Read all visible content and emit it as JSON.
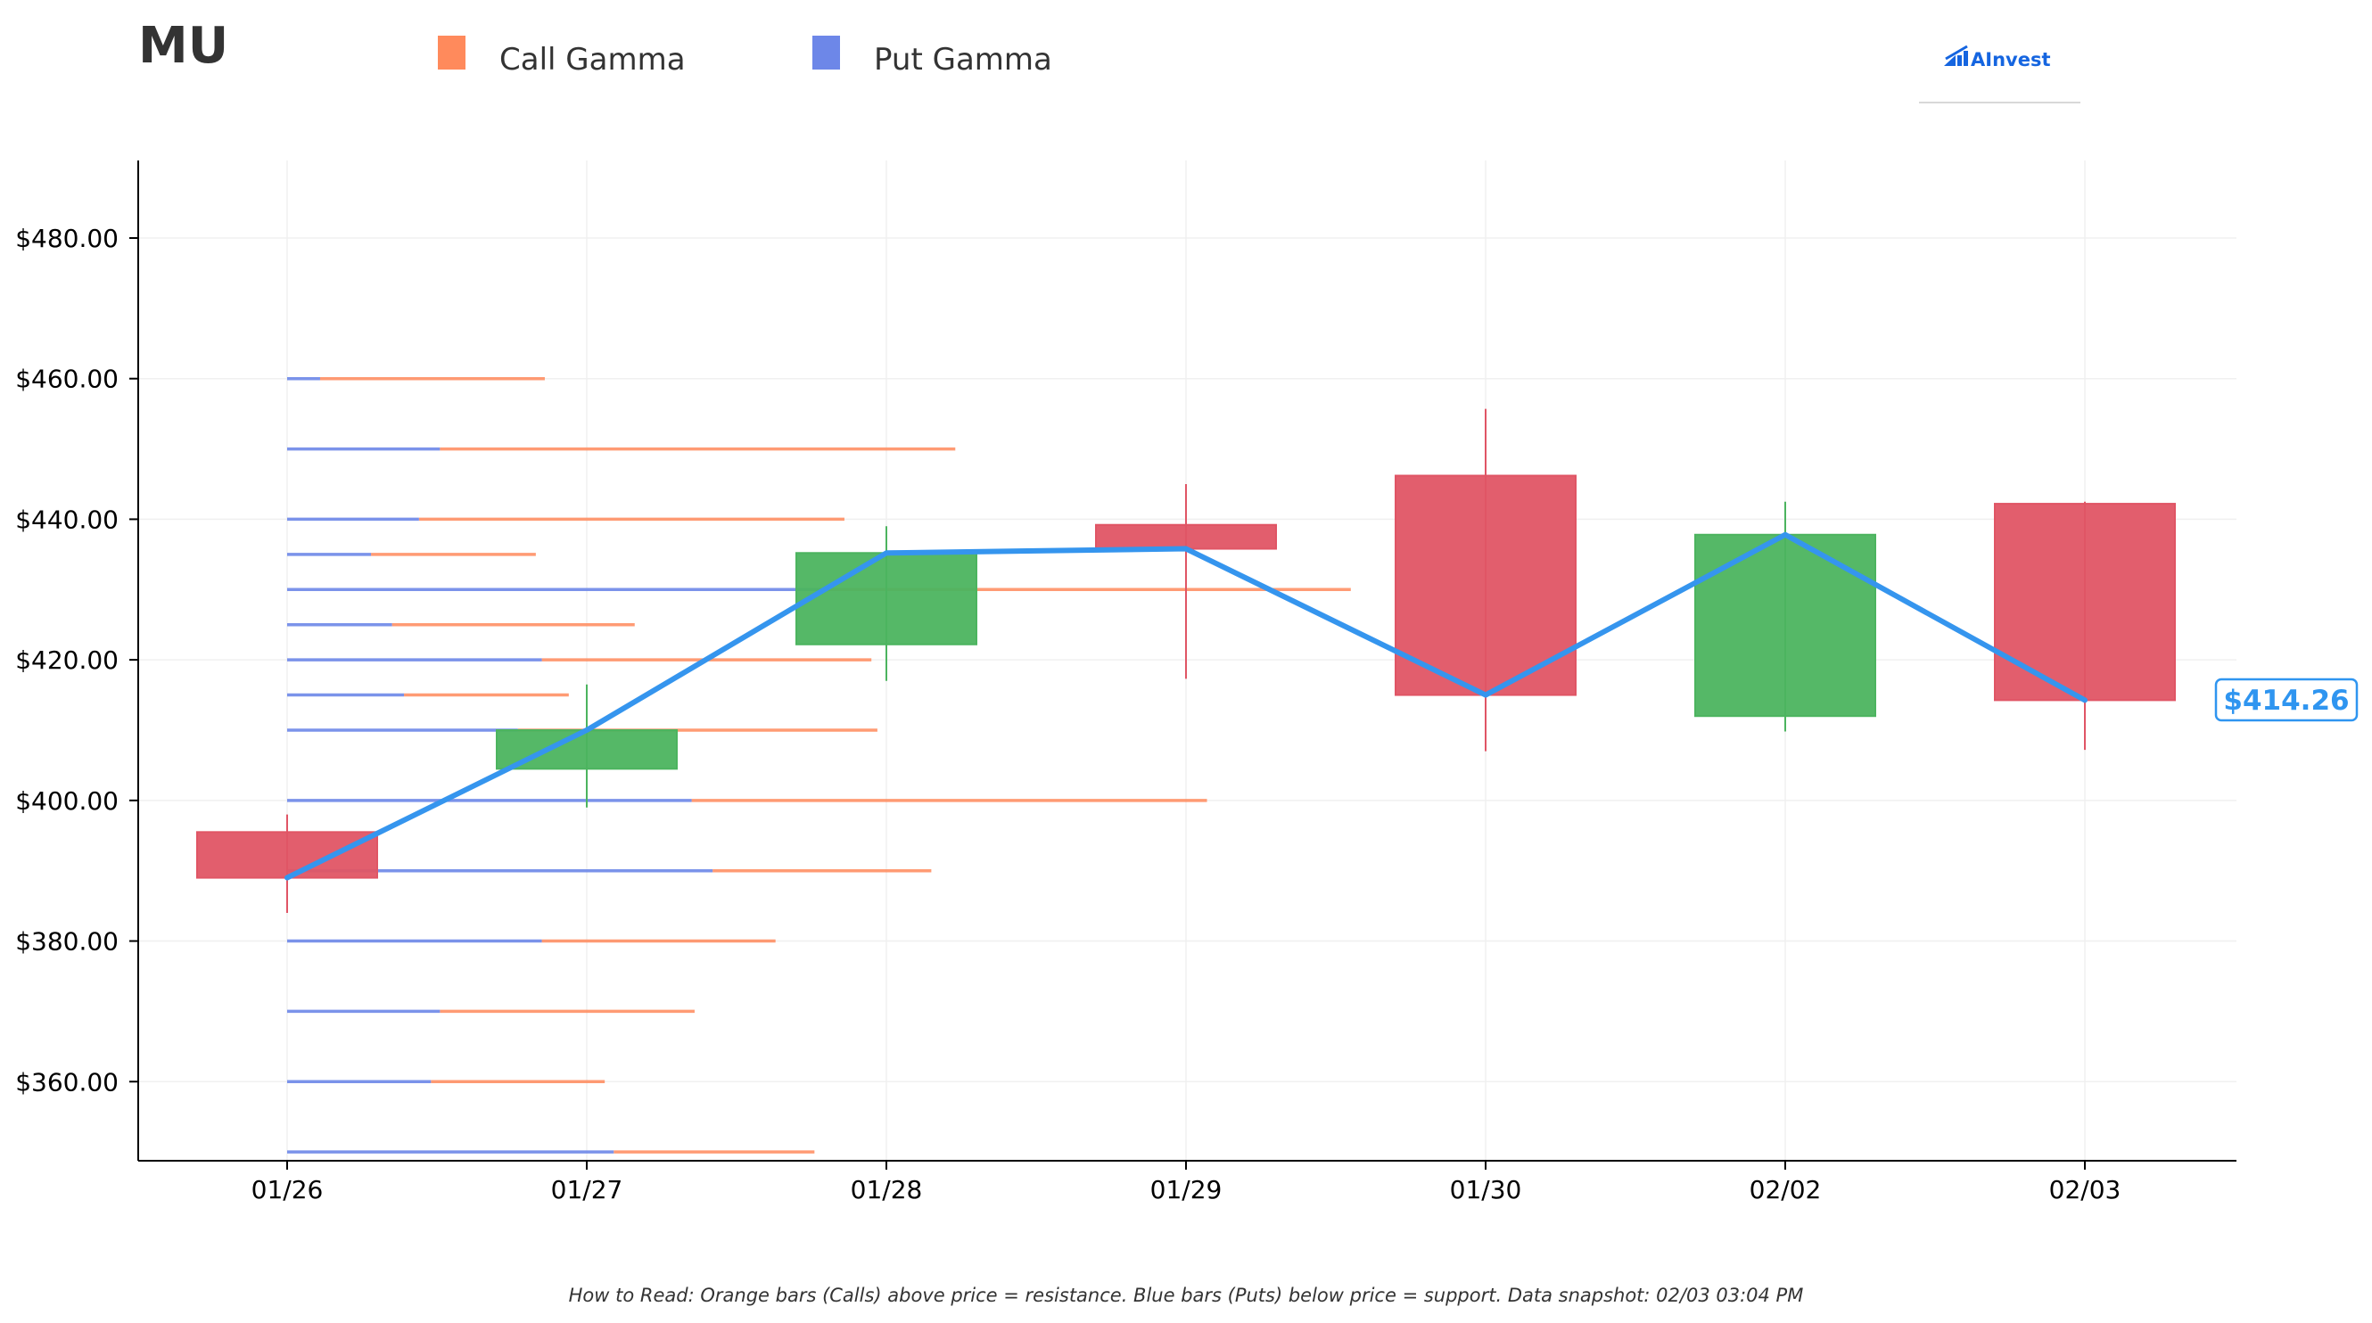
{
  "ticker": "MU",
  "brand": {
    "name": "AInvest",
    "icon": "bar-chart-logo-icon",
    "color": "#1565e0"
  },
  "legend": [
    {
      "label": "Call Gamma",
      "color": "#ff8a5c"
    },
    {
      "label": "Put Gamma",
      "color": "#6d87e8"
    }
  ],
  "footnote": "How to Read: Orange bars (Calls) above price = resistance. Blue bars (Puts) below price = support. Data snapshot: 02/03 03:04 PM",
  "last_price_label": "$414.26",
  "colors": {
    "up": "#4cb45f",
    "down": "#e05565",
    "price_line": "#3595ee",
    "call": "#ff8a5c",
    "put": "#6d87e8",
    "grid": "#f0f0f0"
  },
  "chart_data": {
    "type": "candlestick",
    "title": "MU",
    "xlabel": "",
    "ylabel": "",
    "grid": true,
    "legend_placement": "top",
    "ylim": [
      348,
      490
    ],
    "y_ticks": [
      360,
      380,
      400,
      420,
      440,
      460,
      480
    ],
    "y_tick_labels": [
      "$360.00",
      "$380.00",
      "$400.00",
      "$420.00",
      "$440.00",
      "$460.00",
      "$480.00"
    ],
    "categories": [
      "01/26",
      "01/27",
      "01/28",
      "01/29",
      "01/30",
      "02/02",
      "02/03"
    ],
    "candles": [
      {
        "date": "01/26",
        "open": 395.5,
        "high": 398.0,
        "low": 384.0,
        "close": 389.0
      },
      {
        "date": "01/27",
        "open": 404.5,
        "high": 416.5,
        "low": 399.0,
        "close": 410.0
      },
      {
        "date": "01/28",
        "open": 422.2,
        "high": 439.0,
        "low": 417.0,
        "close": 435.2
      },
      {
        "date": "01/29",
        "open": 439.2,
        "high": 445.0,
        "low": 417.3,
        "close": 435.8
      },
      {
        "date": "01/30",
        "open": 446.2,
        "high": 455.7,
        "low": 407.0,
        "close": 415.0
      },
      {
        "date": "02/02",
        "open": 412.0,
        "high": 442.5,
        "low": 409.8,
        "close": 437.8
      },
      {
        "date": "02/03",
        "open": 442.2,
        "high": 442.5,
        "low": 407.2,
        "close": 414.26
      }
    ],
    "price_line": {
      "name": "Close",
      "values": [
        389.0,
        410.0,
        435.2,
        435.8,
        415.0,
        437.8,
        414.26
      ]
    },
    "gamma_levels": [
      {
        "strike": 460,
        "put": 0.11,
        "call": 0.75
      },
      {
        "strike": 450,
        "put": 0.51,
        "call": 1.72
      },
      {
        "strike": 440,
        "put": 0.44,
        "call": 1.42
      },
      {
        "strike": 435,
        "put": 0.28,
        "call": 0.55
      },
      {
        "strike": 430,
        "put": 1.8,
        "call": 1.75
      },
      {
        "strike": 425,
        "put": 0.35,
        "call": 0.81
      },
      {
        "strike": 420,
        "put": 0.85,
        "call": 1.1
      },
      {
        "strike": 415,
        "put": 0.39,
        "call": 0.55
      },
      {
        "strike": 410,
        "put": 0.77,
        "call": 1.2
      },
      {
        "strike": 400,
        "put": 1.35,
        "call": 1.72
      },
      {
        "strike": 390,
        "put": 1.42,
        "call": 0.73
      },
      {
        "strike": 380,
        "put": 0.85,
        "call": 0.78
      },
      {
        "strike": 370,
        "put": 0.51,
        "call": 0.85
      },
      {
        "strike": 360,
        "put": 0.48,
        "call": 0.58
      },
      {
        "strike": 350,
        "put": 1.09,
        "call": 0.67
      }
    ]
  }
}
